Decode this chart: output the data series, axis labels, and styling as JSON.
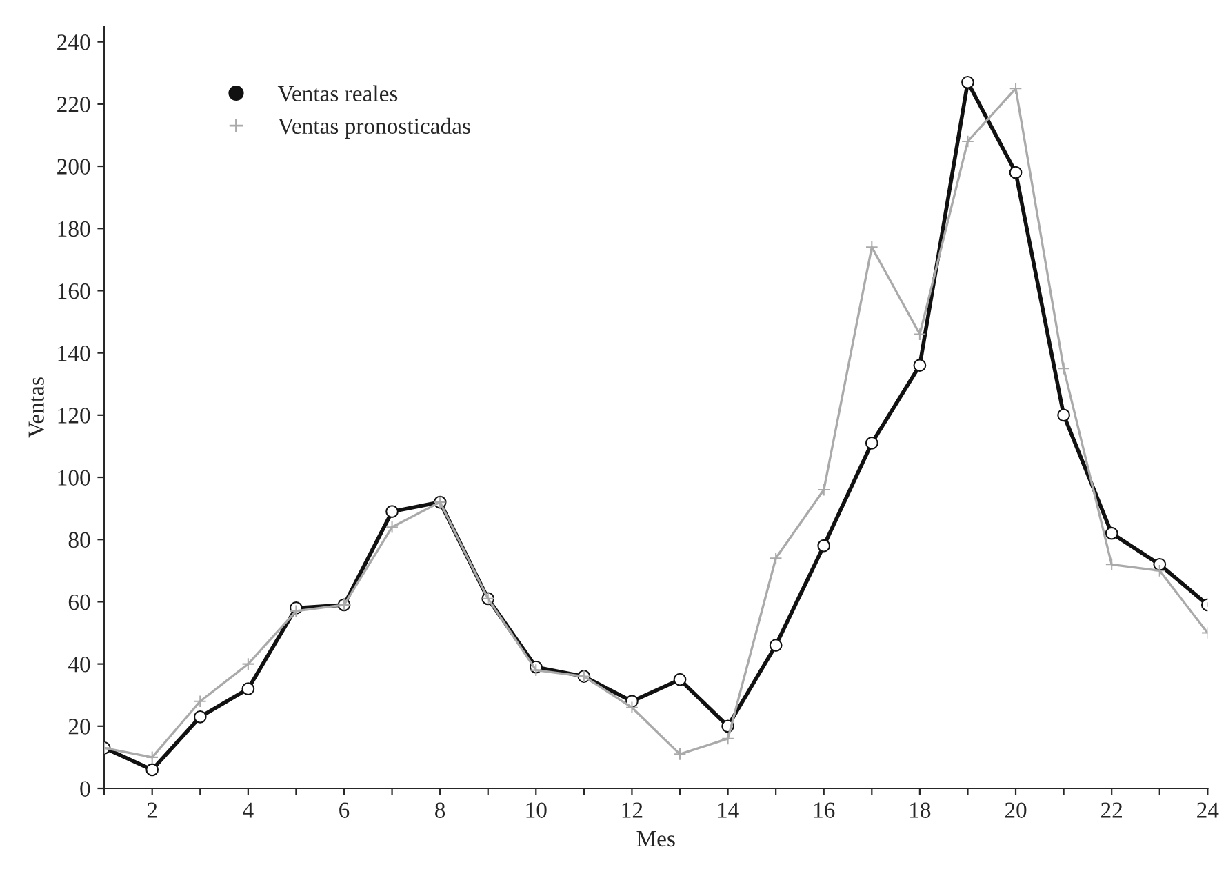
{
  "chart_data": {
    "type": "line",
    "xlabel": "Mes",
    "ylabel": "Ventas",
    "x": [
      1,
      2,
      3,
      4,
      5,
      6,
      7,
      8,
      9,
      10,
      11,
      12,
      13,
      14,
      15,
      16,
      17,
      18,
      19,
      20,
      21,
      22,
      23,
      24
    ],
    "series": [
      {
        "name": "Ventas reales",
        "color": "#111111",
        "marker": "circle",
        "values": [
          13,
          6,
          23,
          32,
          58,
          59,
          89,
          92,
          61,
          39,
          36,
          28,
          35,
          20,
          46,
          78,
          111,
          136,
          227,
          198,
          120,
          82,
          72,
          59
        ]
      },
      {
        "name": "Ventas pronosticadas",
        "color": "#aaaaaa",
        "marker": "cross",
        "values": [
          13,
          10,
          28,
          40,
          57,
          59,
          84,
          92,
          61,
          38,
          36,
          26,
          11,
          16,
          74,
          96,
          174,
          146,
          208,
          225,
          135,
          72,
          70,
          50
        ]
      }
    ],
    "xlim": [
      1,
      24
    ],
    "xticks": [
      {
        "value": 1,
        "label": null
      },
      2,
      {
        "value": 3,
        "label": null
      },
      4,
      {
        "value": 5,
        "label": null
      },
      6,
      {
        "value": 7,
        "label": null
      },
      8,
      {
        "value": 9,
        "label": null
      },
      10,
      {
        "value": 11,
        "label": null
      },
      12,
      {
        "value": 13,
        "label": null
      },
      14,
      {
        "value": 15,
        "label": null
      },
      16,
      {
        "value": 17,
        "label": null
      },
      18,
      {
        "value": 19,
        "label": null
      },
      20,
      {
        "value": 21,
        "label": null
      },
      22,
      {
        "value": 23,
        "label": null
      },
      24
    ],
    "ylim": [
      0,
      245
    ],
    "yticks": [
      0,
      20,
      40,
      60,
      80,
      100,
      120,
      140,
      160,
      180,
      200,
      220,
      240
    ],
    "grid": false,
    "legend": "top left",
    "line_style": "solid"
  }
}
